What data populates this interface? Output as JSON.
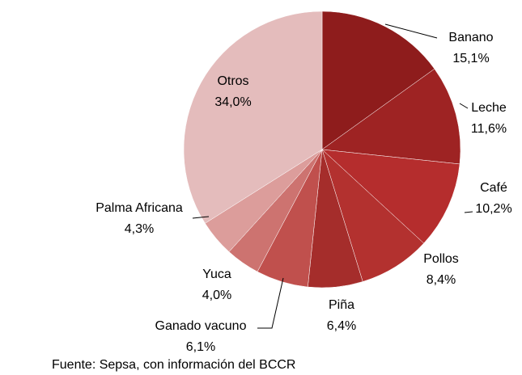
{
  "chart_data": {
    "type": "pie",
    "categories": [
      "Banano",
      "Leche",
      "Café",
      "Pollos",
      "Piña",
      "Ganado vacuno",
      "Yuca",
      "Palma Africana",
      "Otros"
    ],
    "values": [
      15.1,
      11.6,
      10.2,
      8.4,
      6.4,
      6.1,
      4.0,
      4.3,
      34.0
    ],
    "value_labels": [
      "15,1%",
      "11,6%",
      "10,2%",
      "8,4%",
      "6,4%",
      "6,1%",
      "4,0%",
      "4,3%",
      "34,0%"
    ],
    "colors": [
      "#8e1c1c",
      "#9e2323",
      "#b52d2d",
      "#b3312f",
      "#a52d2b",
      "#c0504d",
      "#cd7370",
      "#dc9d9b",
      "#e4bcbc"
    ],
    "source": "Fuente:  Sepsa,  con información del BCCR"
  }
}
